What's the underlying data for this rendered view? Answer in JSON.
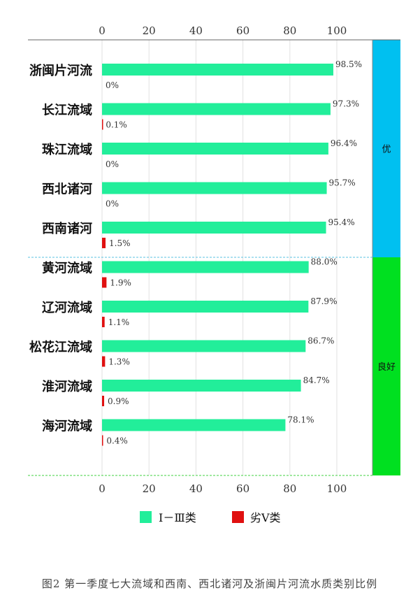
{
  "chart_data": {
    "type": "bar",
    "orientation": "horizontal",
    "categories": [
      "浙闽片河流",
      "长江流域",
      "珠江流域",
      "西北诸河",
      "西南诸河",
      "黄河流域",
      "辽河流域",
      "松花江流域",
      "淮河流域",
      "海河流域"
    ],
    "series": [
      {
        "name": "Ⅰ－Ⅲ类",
        "color": "#22ee9a",
        "values": [
          98.5,
          97.3,
          96.4,
          95.7,
          95.4,
          88.0,
          87.9,
          86.7,
          84.7,
          78.1
        ],
        "labels": [
          "98.5%",
          "97.3%",
          "96.4%",
          "95.7%",
          "95.4%",
          "88.0%",
          "87.9%",
          "86.7%",
          "84.7%",
          "78.1%"
        ]
      },
      {
        "name": "劣Ⅴ类",
        "color": "#e01010",
        "values": [
          0,
          0.1,
          0,
          0,
          1.5,
          1.9,
          1.1,
          1.3,
          0.9,
          0.4
        ],
        "labels": [
          "0%",
          "0.1%",
          "0%",
          "0%",
          "1.5%",
          "1.9%",
          "1.1%",
          "1.3%",
          "0.9%",
          "0.4%"
        ]
      }
    ],
    "xlim": [
      0,
      114
    ],
    "xticks": [
      0,
      20,
      40,
      60,
      80,
      100
    ],
    "xtick_labels": [
      "0",
      "20",
      "40",
      "60",
      "80",
      "100"
    ],
    "grid": true,
    "legend_position": "bottom",
    "groups": [
      {
        "label": "优",
        "color": "#00c0f0",
        "count": 5
      },
      {
        "label": "良好",
        "color": "#00e020",
        "count": 5
      }
    ],
    "caption": "图2  第一季度七大流域和西南、西北诸河及浙闽片河流水质类别比例"
  }
}
